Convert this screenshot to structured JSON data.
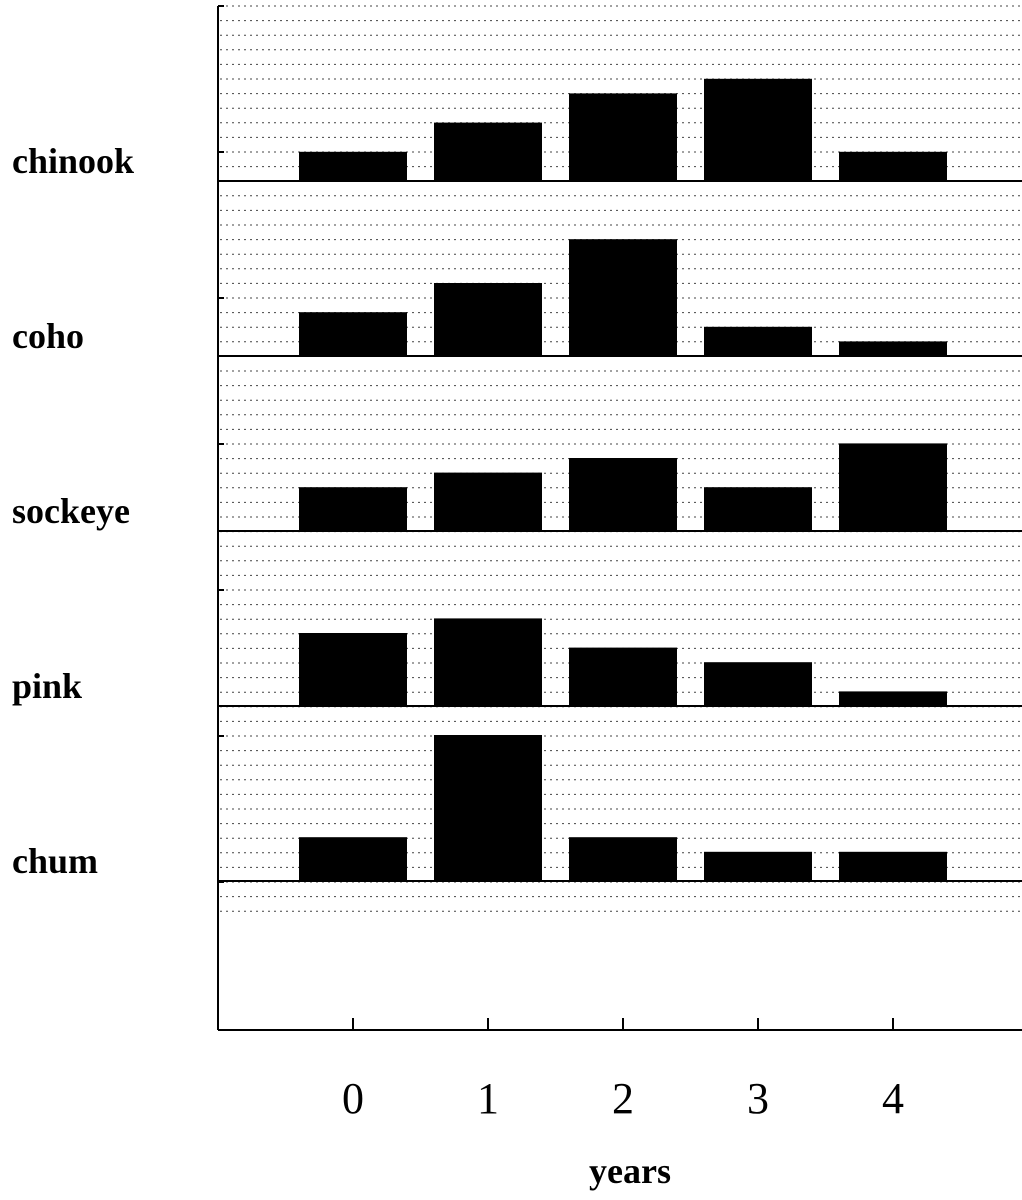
{
  "chart_data": {
    "type": "bar",
    "xlabel": "years",
    "categories": [
      "0",
      "1",
      "2",
      "3",
      "4"
    ],
    "grid": true,
    "series": [
      {
        "name": "chinook",
        "values": [
          2,
          4,
          6,
          7,
          2
        ]
      },
      {
        "name": "coho",
        "values": [
          3,
          5,
          8,
          2,
          1
        ]
      },
      {
        "name": "sockeye",
        "values": [
          3,
          4,
          5,
          3,
          6
        ]
      },
      {
        "name": "pink",
        "values": [
          5,
          6,
          4,
          3,
          1
        ]
      },
      {
        "name": "chum",
        "values": [
          3,
          10,
          3,
          2,
          2
        ]
      }
    ],
    "colors": {
      "bar": "#000000",
      "axis": "#000000",
      "grid": "#444444"
    }
  }
}
